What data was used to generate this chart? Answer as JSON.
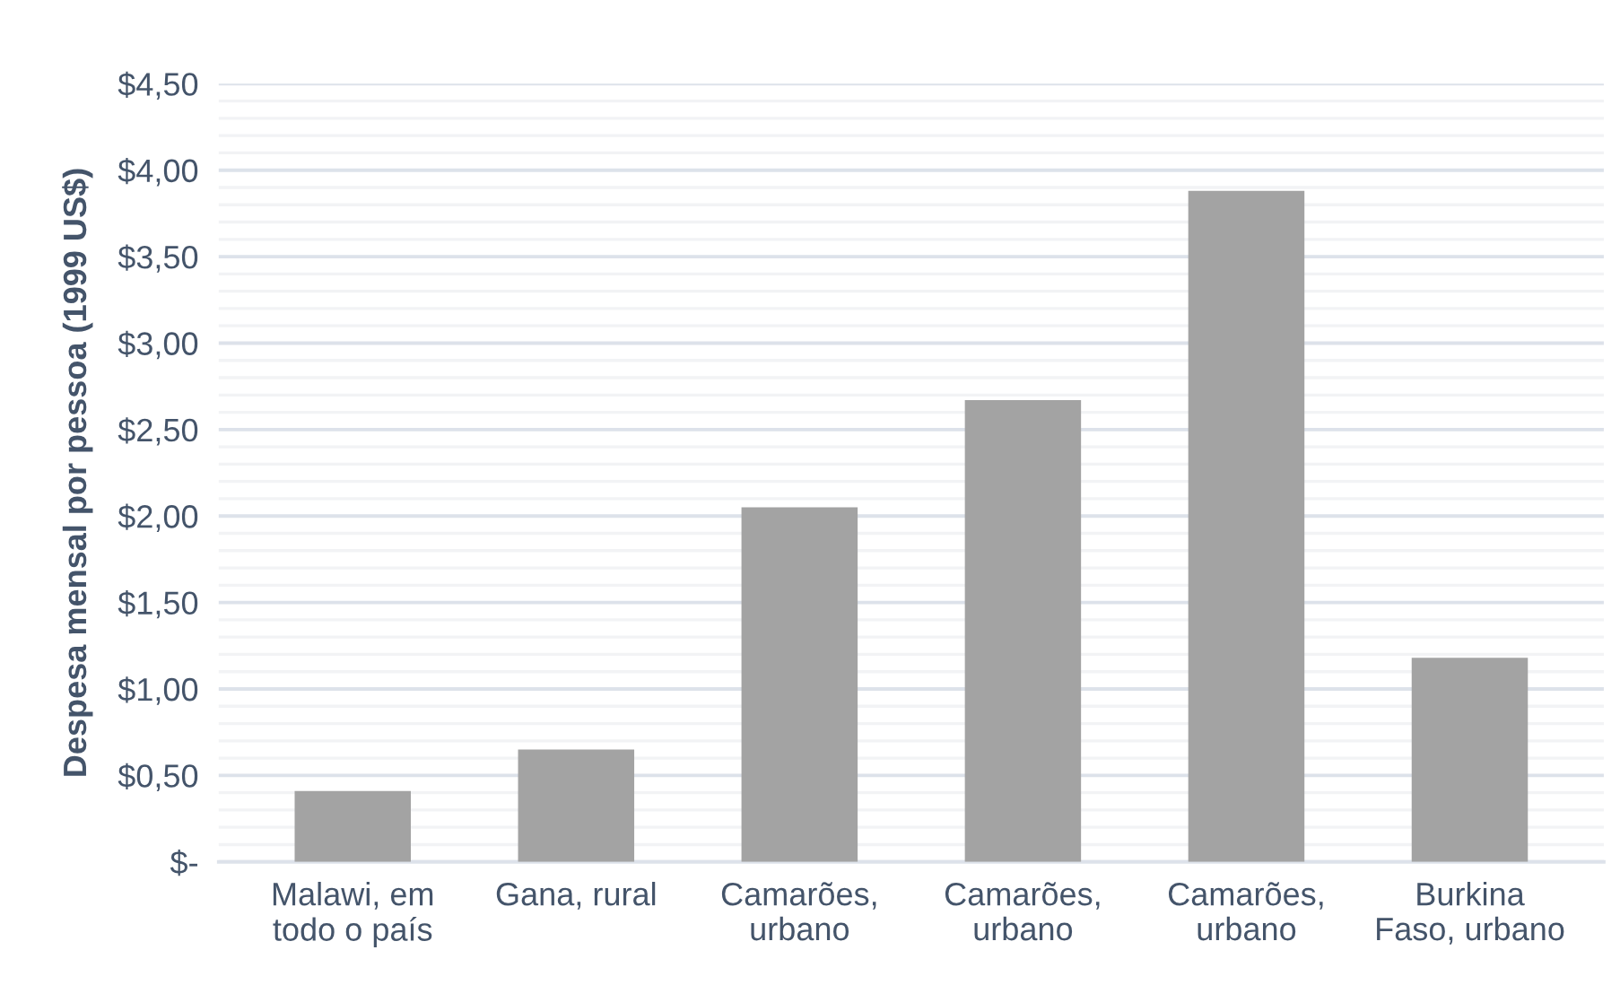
{
  "chart_data": {
    "type": "bar",
    "ylabel": "Despesa mensal por pessoa (1999 US$)",
    "categories": [
      "Malawi, em\ntodo o país",
      "Gana, rural",
      "Camarões,\nurbano",
      "Camarões,\nurbano",
      "Camarões,\nurbano",
      "Burkina\nFaso, urbano"
    ],
    "values": [
      0.41,
      0.65,
      2.05,
      2.67,
      3.88,
      1.18
    ],
    "color": "#a3a3a3",
    "ylim": [
      0,
      4.5
    ],
    "yticks": [
      {
        "value": 0,
        "label": "$-"
      },
      {
        "value": 0.5,
        "label": "$0,50"
      },
      {
        "value": 1,
        "label": "$1,00"
      },
      {
        "value": 1.5,
        "label": "$1,50"
      },
      {
        "value": 2,
        "label": "$2,00"
      },
      {
        "value": 2.5,
        "label": "$2,50"
      },
      {
        "value": 3,
        "label": "$3,00"
      },
      {
        "value": 3.5,
        "label": "$3,50"
      },
      {
        "value": 4,
        "label": "$4,00"
      },
      {
        "value": 4.5,
        "label": "$4,50"
      }
    ],
    "grid": "y"
  }
}
